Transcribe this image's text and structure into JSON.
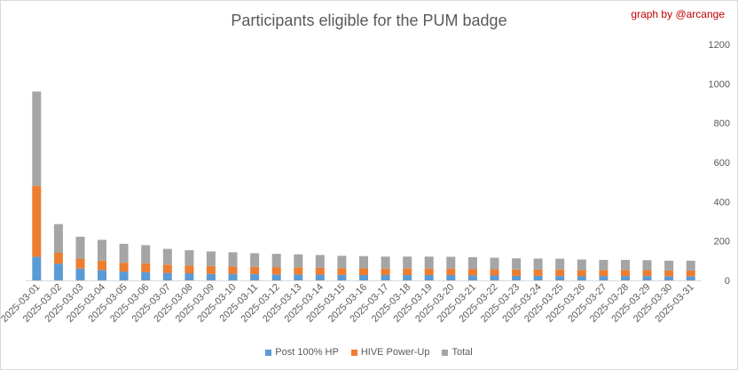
{
  "header": {
    "title": "Participants eligible for the PUM badge",
    "credit": "graph by @arcange"
  },
  "colors": {
    "post": "#5b9bd5",
    "hive": "#ed7d31",
    "total": "#a5a5a5"
  },
  "chart_data": {
    "type": "bar",
    "stacked": true,
    "title": "Participants eligible for the PUM badge",
    "xlabel": "",
    "ylabel": "",
    "ylim": [
      0,
      1200
    ],
    "yticks": [
      0,
      200,
      400,
      600,
      800,
      1000,
      1200
    ],
    "y_axis_side": "right",
    "grid": false,
    "legend_position": "bottom",
    "categories": [
      "2025-03-01",
      "2025-03-02",
      "2025-03-03",
      "2025-03-04",
      "2025-03-05",
      "2025-03-06",
      "2025-03-07",
      "2025-03-08",
      "2025-03-09",
      "2025-03-10",
      "2025-03-11",
      "2025-03-12",
      "2025-03-13",
      "2025-03-14",
      "2025-03-15",
      "2025-03-16",
      "2025-03-17",
      "2025-03-18",
      "2025-03-19",
      "2025-03-20",
      "2025-03-21",
      "2025-03-22",
      "2025-03-23",
      "2025-03-24",
      "2025-03-25",
      "2025-03-26",
      "2025-03-27",
      "2025-03-28",
      "2025-03-29",
      "2025-03-30",
      "2025-03-31"
    ],
    "series": [
      {
        "name": "Post 100% HP",
        "values": [
          120,
          85,
          60,
          52,
          45,
          42,
          38,
          36,
          33,
          33,
          32,
          30,
          30,
          29,
          28,
          27,
          27,
          27,
          27,
          27,
          25,
          25,
          23,
          23,
          23,
          22,
          22,
          22,
          22,
          20,
          20
        ]
      },
      {
        "name": "HIVE Power-Up",
        "values": [
          360,
          55,
          50,
          48,
          45,
          45,
          42,
          40,
          40,
          38,
          37,
          37,
          36,
          35,
          34,
          34,
          33,
          33,
          33,
          33,
          33,
          32,
          32,
          32,
          32,
          31,
          30,
          30,
          30,
          30,
          30
        ]
      },
      {
        "name": "Total",
        "values": [
          480,
          146,
          112,
          106,
          96,
          92,
          80,
          78,
          74,
          72,
          69,
          68,
          66,
          65,
          63,
          62,
          61,
          61,
          61,
          60,
          60,
          58,
          57,
          56,
          55,
          53,
          52,
          52,
          51,
          50,
          50
        ]
      }
    ]
  }
}
